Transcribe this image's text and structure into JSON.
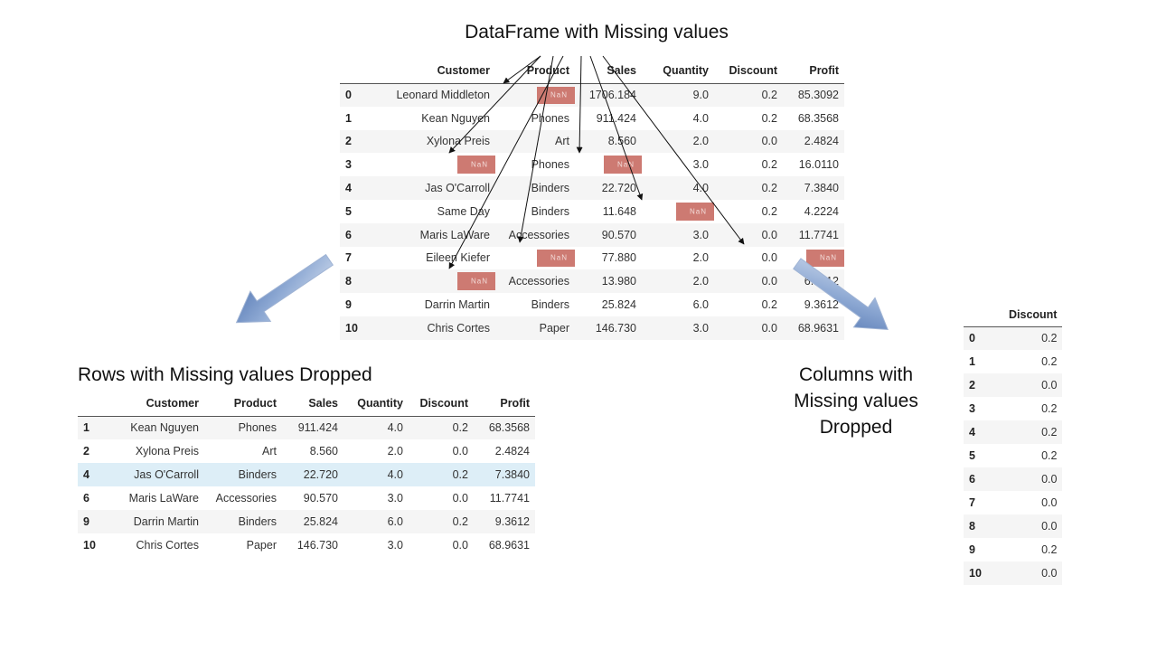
{
  "title": "DataFrame with Missing values",
  "captions": {
    "rows_dropped": "Rows with Missing values Dropped",
    "cols_dropped": "Columns with Missing values Dropped"
  },
  "nan_label": "NaN",
  "colors": {
    "nan_highlight": "#cd7a72",
    "selected_row": "#ddeef7",
    "arrow_fill": "#7f9fce"
  },
  "main_table": {
    "columns": [
      "Customer",
      "Product",
      "Sales",
      "Quantity",
      "Discount",
      "Profit"
    ],
    "rows": [
      {
        "index": "0",
        "cells": [
          "Leonard Middleton",
          "NaN",
          "1706.184",
          "9.0",
          "0.2",
          "85.3092"
        ]
      },
      {
        "index": "1",
        "cells": [
          "Kean Nguyen",
          "Phones",
          "911.424",
          "4.0",
          "0.2",
          "68.3568"
        ]
      },
      {
        "index": "2",
        "cells": [
          "Xylona Preis",
          "Art",
          "8.560",
          "2.0",
          "0.0",
          "2.4824"
        ]
      },
      {
        "index": "3",
        "cells": [
          "NaN",
          "Phones",
          "NaN",
          "3.0",
          "0.2",
          "16.0110"
        ]
      },
      {
        "index": "4",
        "cells": [
          "Jas O'Carroll",
          "Binders",
          "22.720",
          "4.0",
          "0.2",
          "7.3840"
        ]
      },
      {
        "index": "5",
        "cells": [
          "Same Day",
          "Binders",
          "11.648",
          "NaN",
          "0.2",
          "4.2224"
        ]
      },
      {
        "index": "6",
        "cells": [
          "Maris LaWare",
          "Accessories",
          "90.570",
          "3.0",
          "0.0",
          "11.7741"
        ]
      },
      {
        "index": "7",
        "cells": [
          "Eileen Kiefer",
          "NaN",
          "77.880",
          "2.0",
          "0.0",
          "NaN"
        ]
      },
      {
        "index": "8",
        "cells": [
          "NaN",
          "Accessories",
          "13.980",
          "2.0",
          "0.0",
          "6.1512"
        ]
      },
      {
        "index": "9",
        "cells": [
          "Darrin Martin",
          "Binders",
          "25.824",
          "6.0",
          "0.2",
          "9.3612"
        ]
      },
      {
        "index": "10",
        "cells": [
          "Chris Cortes",
          "Paper",
          "146.730",
          "3.0",
          "0.0",
          "68.9631"
        ]
      }
    ]
  },
  "rows_dropped_table": {
    "columns": [
      "Customer",
      "Product",
      "Sales",
      "Quantity",
      "Discount",
      "Profit"
    ],
    "highlighted_index": "4",
    "rows": [
      {
        "index": "1",
        "cells": [
          "Kean Nguyen",
          "Phones",
          "911.424",
          "4.0",
          "0.2",
          "68.3568"
        ]
      },
      {
        "index": "2",
        "cells": [
          "Xylona Preis",
          "Art",
          "8.560",
          "2.0",
          "0.0",
          "2.4824"
        ]
      },
      {
        "index": "4",
        "cells": [
          "Jas O'Carroll",
          "Binders",
          "22.720",
          "4.0",
          "0.2",
          "7.3840"
        ]
      },
      {
        "index": "6",
        "cells": [
          "Maris LaWare",
          "Accessories",
          "90.570",
          "3.0",
          "0.0",
          "11.7741"
        ]
      },
      {
        "index": "9",
        "cells": [
          "Darrin Martin",
          "Binders",
          "25.824",
          "6.0",
          "0.2",
          "9.3612"
        ]
      },
      {
        "index": "10",
        "cells": [
          "Chris Cortes",
          "Paper",
          "146.730",
          "3.0",
          "0.0",
          "68.9631"
        ]
      }
    ]
  },
  "cols_dropped_table": {
    "columns": [
      "Discount"
    ],
    "rows": [
      {
        "index": "0",
        "cells": [
          "0.2"
        ]
      },
      {
        "index": "1",
        "cells": [
          "0.2"
        ]
      },
      {
        "index": "2",
        "cells": [
          "0.0"
        ]
      },
      {
        "index": "3",
        "cells": [
          "0.2"
        ]
      },
      {
        "index": "4",
        "cells": [
          "0.2"
        ]
      },
      {
        "index": "5",
        "cells": [
          "0.2"
        ]
      },
      {
        "index": "6",
        "cells": [
          "0.0"
        ]
      },
      {
        "index": "7",
        "cells": [
          "0.0"
        ]
      },
      {
        "index": "8",
        "cells": [
          "0.0"
        ]
      },
      {
        "index": "9",
        "cells": [
          "0.2"
        ]
      },
      {
        "index": "10",
        "cells": [
          "0.0"
        ]
      }
    ]
  }
}
